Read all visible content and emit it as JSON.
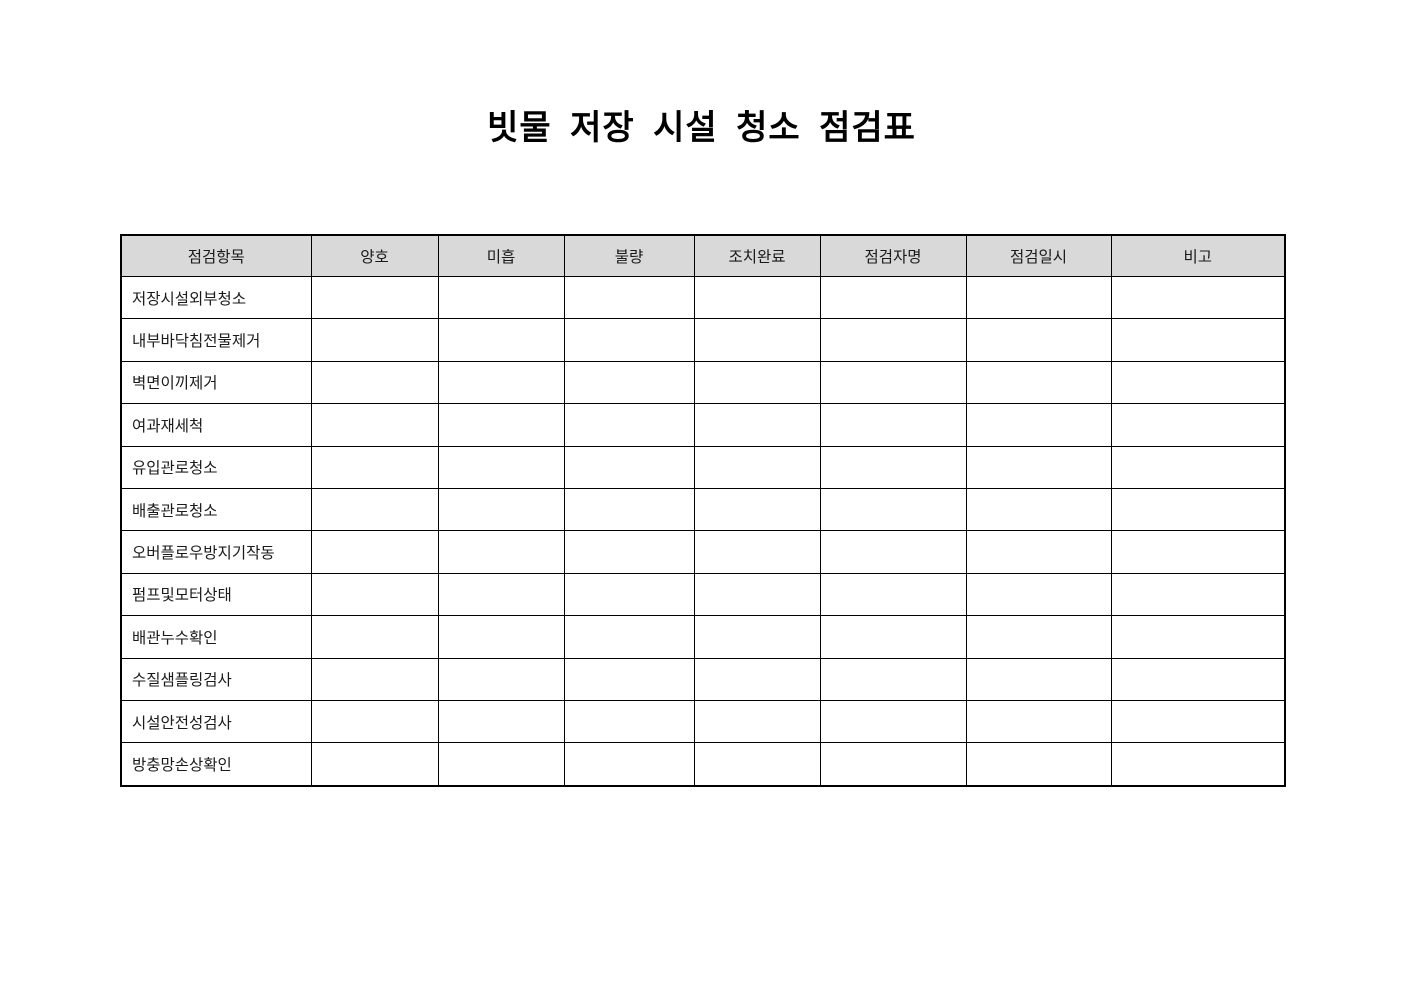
{
  "document": {
    "title": "빗물 저장 시설 청소 점검표"
  },
  "table": {
    "headers": [
      "점검항목",
      "양호",
      "미흡",
      "불량",
      "조치완료",
      "점검자명",
      "점검일시",
      "비고"
    ],
    "rows": [
      "저장시설외부청소",
      "내부바닥침전물제거",
      "벽면이끼제거",
      "여과재세척",
      "유입관로청소",
      "배출관로청소",
      "오버플로우방지기작동",
      "펌프및모터상태",
      "배관누수확인",
      "수질샘플링검사",
      "시설안전성검사",
      "방충망손상확인"
    ],
    "empty_cells_per_row": 7
  },
  "colors": {
    "header_bg": "#d9d9d9",
    "border": "#000000",
    "text": "#1a1a1a",
    "page_bg": "#ffffff"
  }
}
